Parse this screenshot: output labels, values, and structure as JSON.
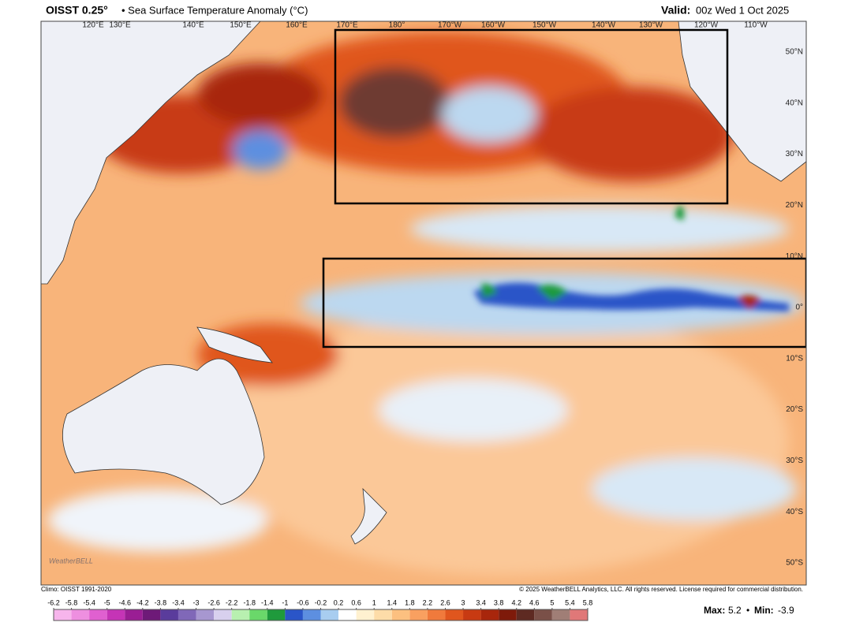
{
  "header": {
    "product": "OISST 0.25°",
    "title": "• Sea Surface Temperature Anomaly (°C)",
    "valid_label": "Valid:",
    "valid_time": "00z Wed 1 Oct 2025"
  },
  "map": {
    "lon_labels": [
      "120°E",
      "130°E",
      "140°E",
      "150°E",
      "160°E",
      "170°E",
      "180°",
      "170°W",
      "160°W",
      "150°W",
      "140°W",
      "130°W",
      "120°W",
      "110°W"
    ],
    "lat_labels": [
      "50°N",
      "40°N",
      "30°N",
      "20°N",
      "10°N",
      "0°",
      "10°S",
      "20°S",
      "30°S",
      "40°S",
      "50°S"
    ],
    "watermark": "WeatherBELL"
  },
  "footer": {
    "climo": "Climo: OISST 1991-2020",
    "copyright": "© 2025 WeatherBELL Analytics, LLC. All rights reserved. License required for commercial distribution.",
    "max_label": "Max:",
    "max": 5.2,
    "separator": "•",
    "min_label": "Min:",
    "min": -3.9
  },
  "colorbar": {
    "ticks": [
      -6.2,
      -5.8,
      -5.4,
      -5,
      -4.6,
      -4.2,
      -3.8,
      -3.4,
      -3,
      -2.6,
      -2.2,
      -1.8,
      -1.4,
      -1,
      -0.6,
      -0.2,
      0.2,
      0.6,
      1,
      1.4,
      1.8,
      2.2,
      2.6,
      3,
      3.4,
      3.8,
      4.2,
      4.6,
      5,
      5.4,
      5.8
    ],
    "colors": [
      "#f7b5ec",
      "#ee8fe0",
      "#e060d0",
      "#c534b6",
      "#9a1e94",
      "#6e1a78",
      "#5a3c9c",
      "#8068b8",
      "#a797d0",
      "#d8d0ee",
      "#b8f0b0",
      "#6ad86a",
      "#1f9a3c",
      "#2a55c8",
      "#5d8fe0",
      "#a8cdf0",
      "#ffffff",
      "#fff1d0",
      "#fddca8",
      "#fcc080",
      "#f9a060",
      "#f07a3c",
      "#e0561e",
      "#c83a12",
      "#a8260c",
      "#7e1a0a",
      "#5e2a22",
      "#7a5048",
      "#a07e76",
      "#e07878"
    ]
  }
}
